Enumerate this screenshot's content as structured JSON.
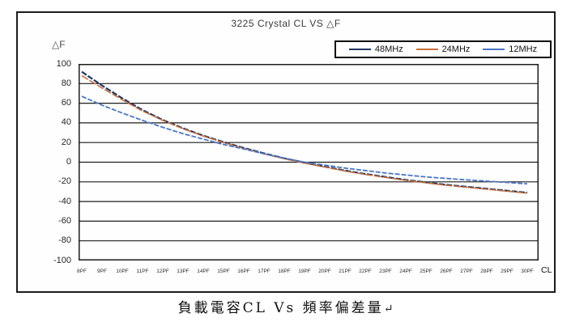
{
  "caption": {
    "text": "負載電容CL Vs 頻率偏差量",
    "return_mark": "↵"
  },
  "chart_data": {
    "type": "line",
    "title": "3225 Crystal CL VS △F",
    "ylabel": "△F",
    "xlabel": "CL",
    "categories": [
      "8PF",
      "9PF",
      "10PF",
      "11PF",
      "12PF",
      "13PF",
      "14PF",
      "15PF",
      "16PF",
      "17PF",
      "18PF",
      "19PF",
      "20PF",
      "21PF",
      "22PF",
      "23PF",
      "24PF",
      "25PF",
      "26PF",
      "27PF",
      "28PF",
      "29PF",
      "30PF"
    ],
    "series": [
      {
        "name": "48MHz",
        "color": "#1F3864",
        "values": [
          92,
          78,
          65,
          53,
          43,
          34.5,
          27,
          20.5,
          14.5,
          9,
          4,
          -0.5,
          -4.5,
          -8.5,
          -12,
          -15,
          -18,
          -20.5,
          -23,
          -25,
          -27,
          -29,
          -31
        ]
      },
      {
        "name": "24MHz",
        "color": "#C8703C",
        "values": [
          88,
          75.5,
          63.5,
          52,
          42.5,
          34,
          26.5,
          20,
          14,
          8.5,
          3.5,
          -1,
          -5,
          -9,
          -12.5,
          -15.5,
          -18.5,
          -21,
          -23.5,
          -25.5,
          -27.5,
          -29.5,
          -31.5
        ]
      },
      {
        "name": "12MHz",
        "color": "#4A76C7",
        "values": [
          67,
          58,
          50,
          42.5,
          35.5,
          29,
          23.5,
          18,
          13.5,
          8.5,
          4,
          0,
          -3,
          -6,
          -8.5,
          -11,
          -13,
          -15,
          -16.5,
          -18,
          -19.3,
          -20.6,
          -22
        ]
      }
    ],
    "ylim": [
      -100,
      100
    ],
    "ytick_step": 20,
    "grid": "horizontal",
    "legend_position": "top-right"
  }
}
